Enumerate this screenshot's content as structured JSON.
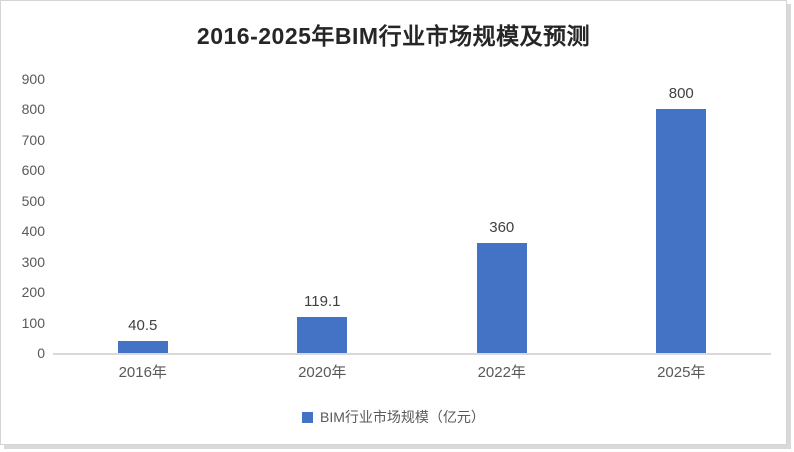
{
  "chart_data": {
    "type": "bar",
    "title": "2016-2025年BIM行业市场规模及预测",
    "categories": [
      "2016年",
      "2020年",
      "2022年",
      "2025年"
    ],
    "values": [
      40.5,
      119.1,
      360,
      800
    ],
    "value_labels": [
      "40.5",
      "119.1",
      "360",
      "800"
    ],
    "legend": "BIM行业市场规模（亿元）",
    "legend_position": "bottom",
    "xlabel": "",
    "ylabel": "",
    "ylim": [
      0,
      900
    ],
    "yticks": [
      0,
      100,
      200,
      300,
      400,
      500,
      600,
      700,
      800,
      900
    ],
    "grid": false,
    "bar_color": "#4472C4",
    "axis_line_color": "#d9d9d9",
    "tick_text_color": "#595959",
    "data_label_color": "#404040",
    "title_color": "#262626"
  }
}
